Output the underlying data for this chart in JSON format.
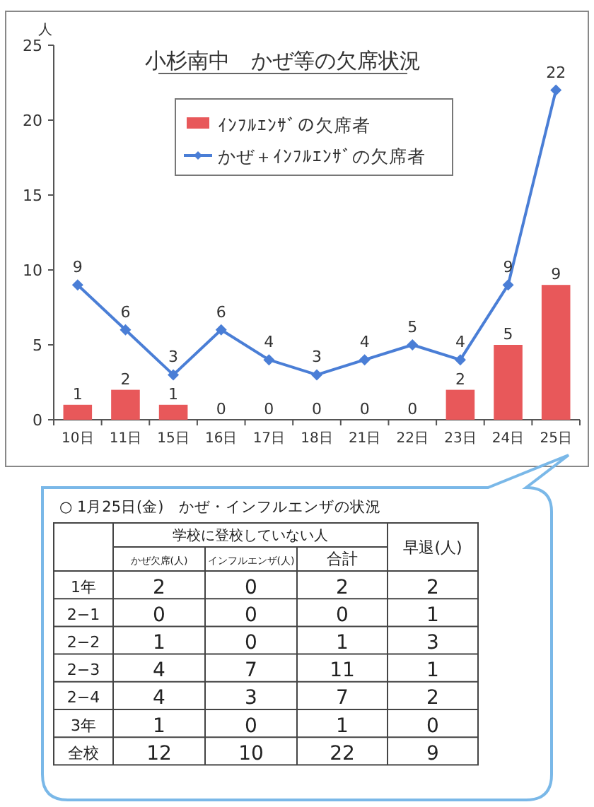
{
  "chart_data": [
    {
      "type": "bar",
      "title": "小杉南中　かぜ等の欠席状況",
      "ylabel": "人",
      "categories": [
        "10日",
        "11日",
        "15日",
        "16日",
        "17日",
        "18日",
        "21日",
        "22日",
        "23日",
        "24日",
        "25日"
      ],
      "series": [
        {
          "name": "ｲﾝﾌﾙｴﾝｻﾞの欠席者",
          "type": "bar",
          "color": "#e8585a",
          "values": [
            1,
            2,
            1,
            0,
            0,
            0,
            0,
            0,
            2,
            5,
            9
          ]
        },
        {
          "name": "かぜ＋ｲﾝﾌﾙｴﾝｻﾞの欠席者",
          "type": "line",
          "color": "#4a7ed6",
          "marker": "diamond",
          "values": [
            9,
            6,
            3,
            6,
            4,
            3,
            4,
            5,
            4,
            9,
            22
          ]
        }
      ],
      "ylim": [
        0,
        25
      ],
      "yticks": [
        0,
        5,
        10,
        15,
        20,
        25
      ],
      "data_labels": true,
      "legend": "top",
      "grid": false
    },
    {
      "type": "heatmap",
      "title": "○ 1月25日(金)　かぜ・インフルエンザの状況",
      "annotations": [
        "学校に登校していない人"
      ],
      "categories": [
        "かぜ欠席(人)",
        "インフルエンザ(人)",
        "合計",
        "早退(人)"
      ],
      "y_categories": [
        "1年",
        "2−1",
        "2−2",
        "2−3",
        "2−4",
        "3年",
        "全校"
      ],
      "data_labels": true,
      "cells": [
        [
          2,
          0,
          2,
          2
        ],
        [
          0,
          0,
          0,
          1
        ],
        [
          1,
          0,
          1,
          3
        ],
        [
          4,
          7,
          11,
          1
        ],
        [
          4,
          3,
          7,
          2
        ],
        [
          1,
          0,
          1,
          0
        ],
        [
          12,
          10,
          22,
          9
        ]
      ]
    }
  ]
}
